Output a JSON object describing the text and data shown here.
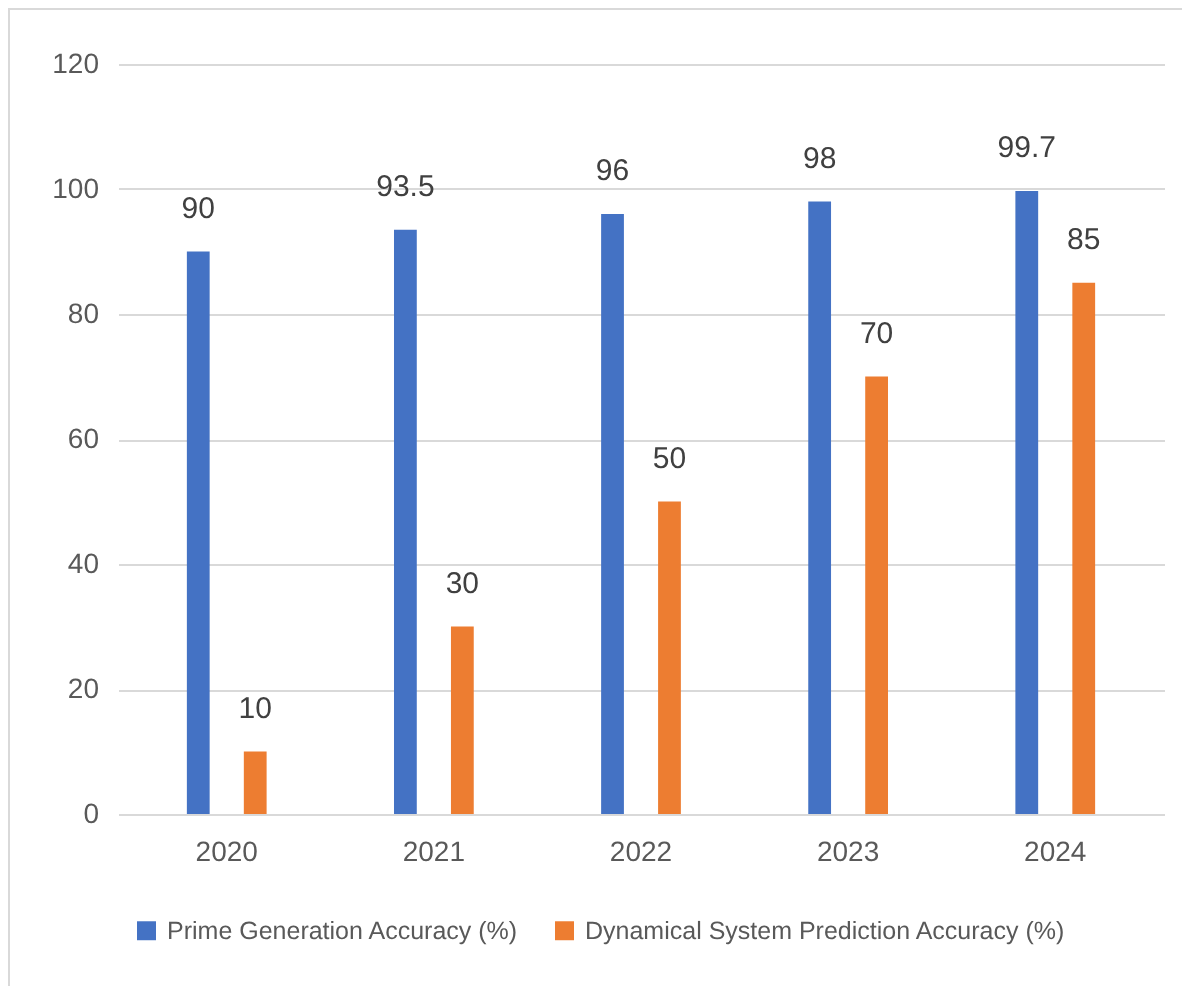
{
  "chart_data": {
    "type": "bar",
    "categories": [
      "2020",
      "2021",
      "2022",
      "2023",
      "2024"
    ],
    "series": [
      {
        "name": "Prime Generation Accuracy (%)",
        "color": "#4472c4",
        "values": [
          90,
          93.5,
          96,
          98,
          99.7
        ]
      },
      {
        "name": "Dynamical System Prediction Accuracy (%)",
        "color": "#ed7d31",
        "values": [
          10,
          30,
          50,
          70,
          85
        ]
      }
    ],
    "ylim": [
      0,
      120
    ],
    "yticks": [
      0,
      20,
      40,
      60,
      80,
      100,
      120
    ],
    "grid": "y",
    "legend": "bottom",
    "data_labels": true
  }
}
